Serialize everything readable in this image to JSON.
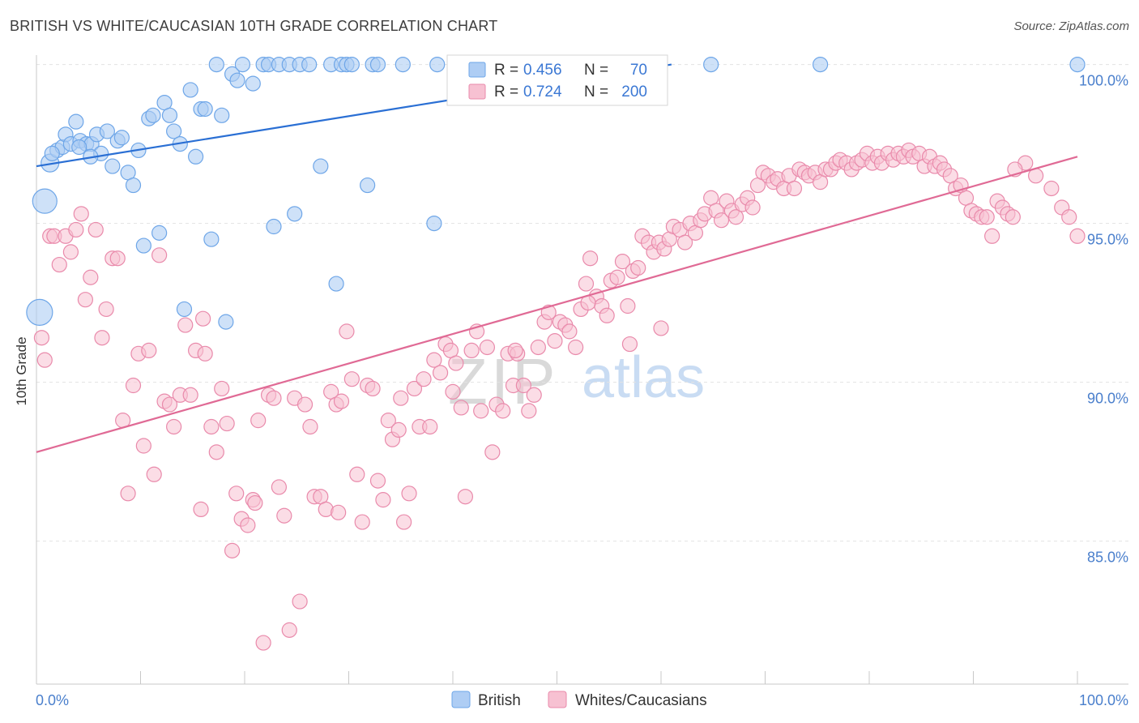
{
  "header": {
    "title": "BRITISH VS WHITE/CAUCASIAN 10TH GRADE CORRELATION CHART",
    "source": "Source: ZipAtlas.com"
  },
  "watermark": {
    "zip": "ZIP",
    "atlas": "atlas"
  },
  "colors": {
    "british": "#6ea6e8",
    "british_fill": "#aecdf4",
    "british_line": "#2a6fd4",
    "whites": "#e98aab",
    "whites_fill": "#f7c1d2",
    "whites_line": "#e06a95",
    "axis_text": "#4a7fcc",
    "grid": "#e3e3e3"
  },
  "chart_data": {
    "type": "scatter",
    "title": "BRITISH VS WHITE/CAUCASIAN 10TH GRADE CORRELATION CHART",
    "xlabel": "",
    "ylabel": "10th Grade",
    "xlim": [
      0,
      100
    ],
    "ylim": [
      80.5,
      100.5
    ],
    "x_tick_labels": [
      "0.0%",
      "100.0%"
    ],
    "y_ticks": [
      {
        "value": 100,
        "label": "100.0%"
      },
      {
        "value": 95,
        "label": "95.0%"
      },
      {
        "value": 90,
        "label": "90.0%"
      },
      {
        "value": 85,
        "label": "85.0%"
      }
    ],
    "grid": "horizontal dashed",
    "legend_position": "top-center",
    "legend": [
      {
        "name": "British",
        "r_label": "R = ",
        "r": "0.456",
        "n_label": "N = ",
        "n": "70"
      },
      {
        "name": "Whites/Caucasians",
        "r_label": "R = ",
        "r": "0.724",
        "n_label": "N = ",
        "n": "200"
      }
    ],
    "series": [
      {
        "name": "British",
        "trend": {
          "x": [
            0,
            61
          ],
          "y": [
            96.8,
            100.0
          ]
        },
        "points": [
          [
            0.3,
            92.2
          ],
          [
            0.8,
            95.7
          ],
          [
            1.3,
            96.9
          ],
          [
            2.0,
            97.3
          ],
          [
            2.5,
            97.4
          ],
          [
            2.8,
            97.8
          ],
          [
            3.3,
            97.5
          ],
          [
            3.8,
            98.2
          ],
          [
            4.2,
            97.6
          ],
          [
            4.8,
            97.5
          ],
          [
            5.3,
            97.5
          ],
          [
            5.8,
            97.8
          ],
          [
            6.2,
            97.2
          ],
          [
            6.8,
            97.9
          ],
          [
            7.3,
            96.8
          ],
          [
            7.8,
            97.6
          ],
          [
            8.2,
            97.7
          ],
          [
            8.8,
            96.6
          ],
          [
            9.3,
            96.2
          ],
          [
            9.8,
            97.3
          ],
          [
            10.3,
            94.3
          ],
          [
            10.8,
            98.3
          ],
          [
            11.2,
            98.4
          ],
          [
            11.8,
            94.7
          ],
          [
            12.3,
            98.8
          ],
          [
            12.8,
            98.4
          ],
          [
            13.2,
            97.9
          ],
          [
            13.8,
            97.5
          ],
          [
            14.2,
            92.3
          ],
          [
            14.8,
            99.2
          ],
          [
            15.3,
            97.1
          ],
          [
            15.8,
            98.6
          ],
          [
            16.2,
            98.6
          ],
          [
            16.8,
            94.5
          ],
          [
            17.3,
            100
          ],
          [
            17.8,
            98.4
          ],
          [
            18.2,
            91.9
          ],
          [
            18.8,
            99.7
          ],
          [
            19.3,
            99.5
          ],
          [
            19.8,
            100
          ],
          [
            20.8,
            99.4
          ],
          [
            21.8,
            100
          ],
          [
            22.3,
            100
          ],
          [
            22.8,
            94.9
          ],
          [
            23.3,
            100
          ],
          [
            24.3,
            100
          ],
          [
            24.8,
            95.3
          ],
          [
            25.3,
            100
          ],
          [
            26.2,
            100
          ],
          [
            27.3,
            96.8
          ],
          [
            28.3,
            100
          ],
          [
            28.8,
            93.1
          ],
          [
            29.3,
            100
          ],
          [
            29.8,
            100
          ],
          [
            30.3,
            100
          ],
          [
            31.8,
            96.2
          ],
          [
            32.3,
            100
          ],
          [
            32.8,
            100
          ],
          [
            35.2,
            100
          ],
          [
            38.2,
            95
          ],
          [
            38.5,
            100
          ],
          [
            43.8,
            100
          ],
          [
            44.3,
            100
          ],
          [
            54.8,
            100
          ],
          [
            64.8,
            100
          ],
          [
            75.3,
            100
          ],
          [
            100,
            100
          ],
          [
            4.1,
            97.4
          ],
          [
            5.2,
            97.1
          ],
          [
            1.5,
            97.2
          ]
        ],
        "big_points": [
          [
            0.3,
            92.2
          ],
          [
            0.8,
            95.7
          ],
          [
            1.3,
            96.9
          ]
        ]
      },
      {
        "name": "Whites/Caucasians",
        "trend": {
          "x": [
            0,
            100
          ],
          "y": [
            87.8,
            97.1
          ]
        },
        "points": [
          [
            0.5,
            91.4
          ],
          [
            0.8,
            90.7
          ],
          [
            1.3,
            94.6
          ],
          [
            1.7,
            94.6
          ],
          [
            2.2,
            93.7
          ],
          [
            2.8,
            94.6
          ],
          [
            3.3,
            94.1
          ],
          [
            3.8,
            94.8
          ],
          [
            4.3,
            95.3
          ],
          [
            4.7,
            92.6
          ],
          [
            5.2,
            93.3
          ],
          [
            5.7,
            94.8
          ],
          [
            6.3,
            91.4
          ],
          [
            6.7,
            92.3
          ],
          [
            7.3,
            93.9
          ],
          [
            7.8,
            93.9
          ],
          [
            8.3,
            88.8
          ],
          [
            8.8,
            86.5
          ],
          [
            9.3,
            89.9
          ],
          [
            9.8,
            90.9
          ],
          [
            10.3,
            88
          ],
          [
            10.8,
            91
          ],
          [
            11.3,
            87.1
          ],
          [
            11.8,
            94
          ],
          [
            12.3,
            89.4
          ],
          [
            12.8,
            89.3
          ],
          [
            13.2,
            88.6
          ],
          [
            13.8,
            89.6
          ],
          [
            14.3,
            91.8
          ],
          [
            14.8,
            89.6
          ],
          [
            15.3,
            91
          ],
          [
            15.8,
            86
          ],
          [
            16.2,
            90.9
          ],
          [
            16.8,
            88.6
          ],
          [
            17.3,
            87.8
          ],
          [
            17.8,
            89.8
          ],
          [
            18.3,
            88.7
          ],
          [
            18.8,
            84.7
          ],
          [
            19.2,
            86.5
          ],
          [
            19.7,
            85.7
          ],
          [
            20.3,
            85.5
          ],
          [
            20.8,
            86.3
          ],
          [
            21.3,
            88.8
          ],
          [
            21.8,
            81.8
          ],
          [
            22.3,
            89.6
          ],
          [
            22.8,
            89.5
          ],
          [
            23.3,
            86.7
          ],
          [
            23.8,
            85.8
          ],
          [
            24.3,
            82.2
          ],
          [
            24.8,
            89.5
          ],
          [
            25.3,
            83.1
          ],
          [
            25.8,
            89.3
          ],
          [
            26.3,
            88.6
          ],
          [
            26.7,
            86.4
          ],
          [
            27.3,
            86.4
          ],
          [
            27.8,
            86
          ],
          [
            28.3,
            89.7
          ],
          [
            28.8,
            89.3
          ],
          [
            29.3,
            89.4
          ],
          [
            29.8,
            91.6
          ],
          [
            30.3,
            90.1
          ],
          [
            30.8,
            87.1
          ],
          [
            31.3,
            85.6
          ],
          [
            31.8,
            89.9
          ],
          [
            32.3,
            89.8
          ],
          [
            32.8,
            86.9
          ],
          [
            33.3,
            86.3
          ],
          [
            33.8,
            88.8
          ],
          [
            34.2,
            88.2
          ],
          [
            34.8,
            88.5
          ],
          [
            35.3,
            85.6
          ],
          [
            35.8,
            86.5
          ],
          [
            36.3,
            89.8
          ],
          [
            36.8,
            88.6
          ],
          [
            37.2,
            90.1
          ],
          [
            37.8,
            88.6
          ],
          [
            38.2,
            90.7
          ],
          [
            38.8,
            90.3
          ],
          [
            39.3,
            91.2
          ],
          [
            39.8,
            91
          ],
          [
            40.3,
            90.6
          ],
          [
            40.8,
            89.2
          ],
          [
            41.2,
            86.4
          ],
          [
            41.8,
            91
          ],
          [
            42.3,
            91.6
          ],
          [
            42.7,
            89.1
          ],
          [
            43.3,
            91.1
          ],
          [
            43.8,
            87.8
          ],
          [
            44.2,
            89.3
          ],
          [
            44.8,
            89.1
          ],
          [
            45.3,
            90.9
          ],
          [
            45.8,
            89.9
          ],
          [
            46.2,
            90.9
          ],
          [
            46.8,
            89.9
          ],
          [
            47.3,
            89.1
          ],
          [
            47.8,
            89.6
          ],
          [
            48.2,
            91.1
          ],
          [
            48.8,
            91.9
          ],
          [
            49.2,
            92.2
          ],
          [
            49.8,
            91.3
          ],
          [
            50.3,
            91.9
          ],
          [
            50.8,
            91.8
          ],
          [
            51.2,
            91.6
          ],
          [
            51.8,
            91.1
          ],
          [
            52.3,
            92.3
          ],
          [
            52.8,
            93.1
          ],
          [
            53.2,
            93.9
          ],
          [
            53.8,
            92.7
          ],
          [
            54.3,
            92.4
          ],
          [
            54.8,
            92.1
          ],
          [
            55.2,
            93.2
          ],
          [
            55.8,
            93.3
          ],
          [
            56.3,
            93.8
          ],
          [
            56.8,
            92.4
          ],
          [
            57.3,
            93.5
          ],
          [
            57.8,
            93.6
          ],
          [
            58.2,
            94.6
          ],
          [
            58.8,
            94.4
          ],
          [
            59.3,
            94.1
          ],
          [
            59.8,
            94.4
          ],
          [
            60.3,
            94.2
          ],
          [
            60.8,
            94.5
          ],
          [
            61.2,
            94.9
          ],
          [
            61.8,
            94.8
          ],
          [
            62.3,
            94.4
          ],
          [
            62.8,
            95
          ],
          [
            63.3,
            94.7
          ],
          [
            63.8,
            95.1
          ],
          [
            64.2,
            95.3
          ],
          [
            64.8,
            95.8
          ],
          [
            65.3,
            95.4
          ],
          [
            65.8,
            95.1
          ],
          [
            66.3,
            95.7
          ],
          [
            66.8,
            95.4
          ],
          [
            67.2,
            95.2
          ],
          [
            67.8,
            95.6
          ],
          [
            68.3,
            95.8
          ],
          [
            68.8,
            95.5
          ],
          [
            69.3,
            96.2
          ],
          [
            69.8,
            96.6
          ],
          [
            70.3,
            96.5
          ],
          [
            70.8,
            96.3
          ],
          [
            71.2,
            96.4
          ],
          [
            71.8,
            96.1
          ],
          [
            72.3,
            96.5
          ],
          [
            72.8,
            96.1
          ],
          [
            73.3,
            96.7
          ],
          [
            73.8,
            96.6
          ],
          [
            74.2,
            96.5
          ],
          [
            74.8,
            96.6
          ],
          [
            75.3,
            96.3
          ],
          [
            75.8,
            96.7
          ],
          [
            76.3,
            96.7
          ],
          [
            76.8,
            96.9
          ],
          [
            77.2,
            97
          ],
          [
            77.8,
            96.9
          ],
          [
            78.3,
            96.7
          ],
          [
            78.8,
            96.9
          ],
          [
            79.3,
            97
          ],
          [
            79.8,
            97.2
          ],
          [
            80.3,
            96.9
          ],
          [
            80.8,
            97.1
          ],
          [
            81.2,
            96.9
          ],
          [
            81.8,
            97.2
          ],
          [
            82.3,
            97
          ],
          [
            82.8,
            97.2
          ],
          [
            83.3,
            97.1
          ],
          [
            83.8,
            97.3
          ],
          [
            84.2,
            97.1
          ],
          [
            84.8,
            97.2
          ],
          [
            85.3,
            96.8
          ],
          [
            85.8,
            97.1
          ],
          [
            86.3,
            96.8
          ],
          [
            86.8,
            96.9
          ],
          [
            87.2,
            96.7
          ],
          [
            87.8,
            96.5
          ],
          [
            88.3,
            96.1
          ],
          [
            88.8,
            96.2
          ],
          [
            89.3,
            95.8
          ],
          [
            89.8,
            95.4
          ],
          [
            90.3,
            95.3
          ],
          [
            90.8,
            95.2
          ],
          [
            91.3,
            95.2
          ],
          [
            91.8,
            94.6
          ],
          [
            92.3,
            95.7
          ],
          [
            92.8,
            95.5
          ],
          [
            93.3,
            95.3
          ],
          [
            93.8,
            95.2
          ],
          [
            100,
            94.6
          ],
          [
            97.5,
            96.1
          ],
          [
            98.5,
            95.5
          ],
          [
            99.2,
            95.2
          ],
          [
            96,
            96.5
          ],
          [
            95,
            96.9
          ],
          [
            94,
            96.7
          ],
          [
            60,
            91.7
          ],
          [
            57,
            91.2
          ],
          [
            53,
            92.5
          ],
          [
            46,
            91
          ],
          [
            40,
            89.7
          ],
          [
            35,
            89.5
          ],
          [
            29,
            85.9
          ],
          [
            21,
            86.2
          ],
          [
            16,
            92
          ]
        ]
      }
    ]
  }
}
